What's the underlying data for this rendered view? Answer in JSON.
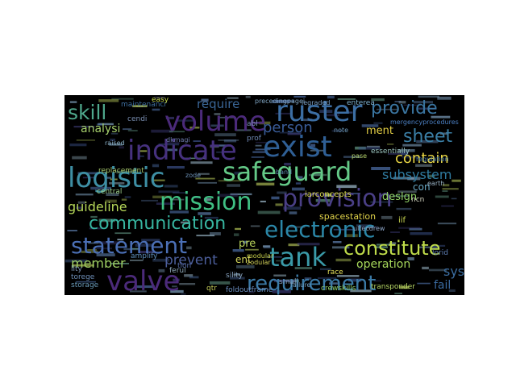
{
  "word_cloud": {
    "background": "#000000",
    "words": [
      {
        "text": "volume",
        "color": "#4b2a7a"
      },
      {
        "text": "ruster",
        "color": "#3c6ea3"
      },
      {
        "text": "skill",
        "color": "#4fa88c"
      },
      {
        "text": "provide",
        "color": "#3a75a0"
      },
      {
        "text": "indicate",
        "color": "#46317e"
      },
      {
        "text": "exist",
        "color": "#2f5f95"
      },
      {
        "text": "sheet",
        "color": "#3b7fa6"
      },
      {
        "text": "person",
        "color": "#3a5d9a"
      },
      {
        "text": "require",
        "color": "#3a6697"
      },
      {
        "text": "analysi",
        "color": "#a5cf6b"
      },
      {
        "text": "logistic",
        "color": "#3e8fa4"
      },
      {
        "text": "safeguard",
        "color": "#64c987"
      },
      {
        "text": "contain",
        "color": "#e8d543"
      },
      {
        "text": "subsystem",
        "color": "#2f7ba0"
      },
      {
        "text": "mission",
        "color": "#3fbf83"
      },
      {
        "text": "provision",
        "color": "#4a3f86"
      },
      {
        "text": "guideline",
        "color": "#b7d95a"
      },
      {
        "text": "communication",
        "color": "#37b5a0"
      },
      {
        "text": "electronic",
        "color": "#2b87a8"
      },
      {
        "text": "statement",
        "color": "#4b6fb5"
      },
      {
        "text": "constitute",
        "color": "#bfdc4a"
      },
      {
        "text": "tank",
        "color": "#3a9aa8"
      },
      {
        "text": "prevent",
        "color": "#4d5f9c"
      },
      {
        "text": "member",
        "color": "#9ccc61"
      },
      {
        "text": "valve",
        "color": "#4b2a7a"
      },
      {
        "text": "requirement",
        "color": "#3b7aa6"
      },
      {
        "text": "operation",
        "color": "#a7d85b"
      },
      {
        "text": "system",
        "color": "#3b6da0"
      },
      {
        "text": "fail",
        "color": "#3a6a9f"
      },
      {
        "text": "deslgn",
        "color": "#8fd066"
      },
      {
        "text": "spacestation",
        "color": "#e0d24a"
      },
      {
        "text": "ment",
        "color": "#e5d045"
      },
      {
        "text": "maintenancr",
        "color": "#3e6e9e"
      },
      {
        "text": "easy",
        "color": "#c9dd4d"
      },
      {
        "text": "precedingpagei",
        "color": "#7ea3c0"
      },
      {
        "text": "mergencyprocedures",
        "color": "#4b7fc2"
      },
      {
        "text": "essentially",
        "color": "#9cc6c0"
      },
      {
        "text": "replacement",
        "color": "#a3c46a"
      },
      {
        "text": "central",
        "color": "#9ccf8a"
      },
      {
        "text": "modular",
        "color": "#c8d04a"
      },
      {
        "text": "zodular",
        "color": "#d4d35a"
      },
      {
        "text": "iarconcepts",
        "color": "#d7d64c"
      },
      {
        "text": "crewskills",
        "color": "#8fd066"
      },
      {
        "text": "transponder",
        "color": "#b6d765"
      },
      {
        "text": "foldoutframe",
        "color": "#6a8dbe"
      },
      {
        "text": "storage",
        "color": "#6a9bb8"
      },
      {
        "text": "amplify",
        "color": "#5f8fbc"
      },
      {
        "text": "regulation",
        "color": "#4a7fb2"
      },
      {
        "text": "enterea",
        "color": "#7db1d0"
      },
      {
        "text": "failure",
        "color": "#6e9fc2"
      },
      {
        "text": "race",
        "color": "#e5e05a"
      },
      {
        "text": "legraded",
        "color": "#7aa0c6"
      },
      {
        "text": "pre",
        "color": "#b7d25a"
      },
      {
        "text": "ent",
        "color": "#d3d55a"
      },
      {
        "text": "con",
        "color": "#6aa8c5"
      },
      {
        "text": "iif",
        "color": "#c7d44f"
      },
      {
        "text": "lorid",
        "color": "#5f7fb5"
      },
      {
        "text": "band",
        "color": "#5e8fb0"
      },
      {
        "text": "raised",
        "color": "#8ab0c6"
      },
      {
        "text": "note",
        "color": "#6f9cbf"
      },
      {
        "text": "pase",
        "color": "#b5d36a"
      },
      {
        "text": "ferul",
        "color": "#8ea8b8"
      },
      {
        "text": "torege",
        "color": "#6e8fb8"
      },
      {
        "text": "ncn",
        "color": "#d3d4c0"
      },
      {
        "text": "earth",
        "color": "#9ab2c4"
      },
      {
        "text": "qtr",
        "color": "#c8cf5a"
      },
      {
        "text": "zode",
        "color": "#6a8fb5"
      },
      {
        "text": "abl",
        "color": "#7c95b5"
      },
      {
        "text": "smali",
        "color": "#7f9bbd"
      },
      {
        "text": "sility",
        "color": "#8aa6c3"
      },
      {
        "text": "cendi",
        "color": "#7a8fb2"
      },
      {
        "text": "tion",
        "color": "#5a6fa8"
      },
      {
        "text": "dkmagi",
        "color": "#6f7db0"
      },
      {
        "text": "ultecdrew",
        "color": "#8fa7c8"
      },
      {
        "text": "prof",
        "color": "#6f89b5"
      },
      {
        "text": "llty",
        "color": "#7d95b8"
      }
    ]
  }
}
